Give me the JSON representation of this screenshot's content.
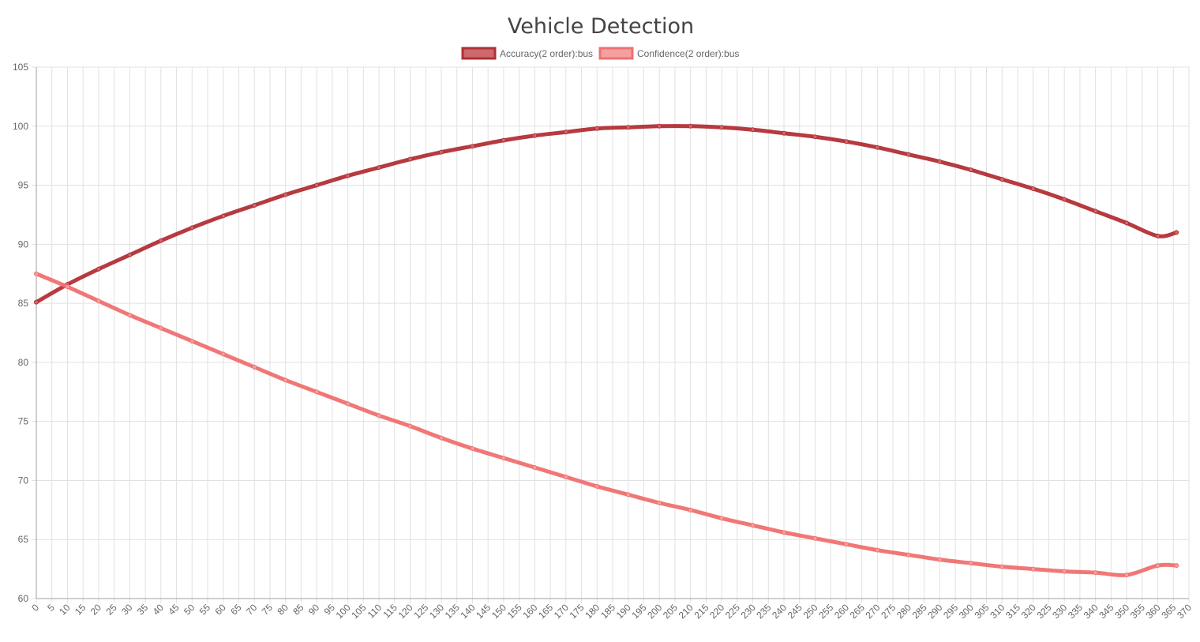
{
  "chart_data": {
    "type": "line",
    "title": "Vehicle Detection",
    "xlabel": "",
    "ylabel": "",
    "xlim": [
      0,
      370
    ],
    "ylim": [
      60,
      105
    ],
    "x_tick_step": 5,
    "y_tick_step": 5,
    "grid": true,
    "legend_position": "top-center",
    "x": [
      0,
      10,
      20,
      30,
      40,
      50,
      60,
      70,
      80,
      90,
      100,
      110,
      120,
      130,
      140,
      150,
      160,
      170,
      180,
      190,
      200,
      210,
      220,
      230,
      240,
      250,
      260,
      270,
      280,
      290,
      300,
      310,
      320,
      330,
      340,
      350,
      360,
      366
    ],
    "series": [
      {
        "name": "Accuracy(2 order):bus",
        "color": "#b22f35",
        "fill": "#cc6a6e",
        "values": [
          85.1,
          86.6,
          87.9,
          89.1,
          90.3,
          91.4,
          92.4,
          93.3,
          94.2,
          95.0,
          95.8,
          96.5,
          97.2,
          97.8,
          98.3,
          98.8,
          99.2,
          99.5,
          99.8,
          99.9,
          100.0,
          100.0,
          99.9,
          99.7,
          99.4,
          99.1,
          98.7,
          98.2,
          97.6,
          97.0,
          96.3,
          95.5,
          94.7,
          93.8,
          92.8,
          91.8,
          90.7,
          91.0
        ]
      },
      {
        "name": "Confidence(2 order):bus",
        "color": "#f07070",
        "fill": "#f4a0a0",
        "values": [
          87.5,
          86.4,
          85.2,
          84.0,
          82.9,
          81.8,
          80.7,
          79.6,
          78.5,
          77.5,
          76.5,
          75.5,
          74.6,
          73.6,
          72.7,
          71.9,
          71.1,
          70.3,
          69.5,
          68.8,
          68.1,
          67.5,
          66.8,
          66.2,
          65.6,
          65.1,
          64.6,
          64.1,
          63.7,
          63.3,
          63.0,
          62.7,
          62.5,
          62.3,
          62.2,
          62.0,
          62.8,
          62.8
        ]
      }
    ]
  }
}
